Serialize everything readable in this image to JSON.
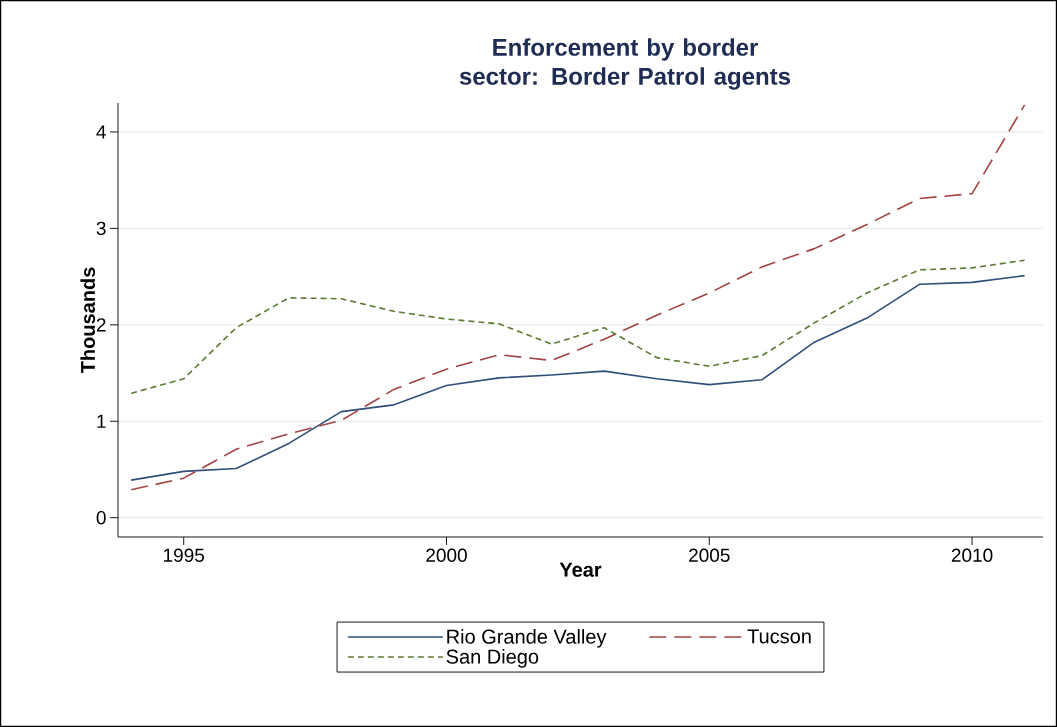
{
  "chart_data": {
    "type": "line",
    "title": "Enforcement by border sector: Border Patrol agents",
    "xlabel": "Year",
    "ylabel": "Thousands",
    "x": [
      1994,
      1995,
      1996,
      1997,
      1998,
      1999,
      2000,
      2001,
      2002,
      2003,
      2004,
      2005,
      2006,
      2007,
      2008,
      2009,
      2010,
      2011
    ],
    "series": [
      {
        "name": "Rio Grande Valley",
        "color": "#2f4f79",
        "line_style": "solid",
        "values": [
          0.39,
          0.48,
          0.51,
          0.77,
          1.1,
          1.17,
          1.37,
          1.45,
          1.48,
          1.52,
          1.44,
          1.38,
          1.43,
          1.82,
          2.07,
          2.42,
          2.44,
          2.51
        ]
      },
      {
        "name": "Tucson",
        "color": "#a24444",
        "line_style": "dashed",
        "values": [
          0.29,
          0.41,
          0.71,
          0.87,
          1.01,
          1.33,
          1.54,
          1.69,
          1.63,
          1.85,
          2.1,
          2.33,
          2.6,
          2.79,
          3.04,
          3.31,
          3.36,
          4.28
        ]
      },
      {
        "name": "San Diego",
        "color": "#5b7a32",
        "line_style": "dotted",
        "values": [
          1.29,
          1.44,
          1.97,
          2.28,
          2.27,
          2.14,
          2.06,
          2.01,
          1.8,
          1.97,
          1.66,
          1.57,
          1.68,
          2.02,
          2.33,
          2.57,
          2.59,
          2.67
        ]
      }
    ],
    "xlim": [
      1993.75,
      2011.35
    ],
    "ylim": [
      -0.2,
      4.3
    ],
    "xticks": [
      1995,
      2000,
      2005,
      2010
    ],
    "yticks": [
      0,
      1,
      2,
      3,
      4
    ],
    "grid": "y",
    "legend": "bottom",
    "marker": "none"
  }
}
